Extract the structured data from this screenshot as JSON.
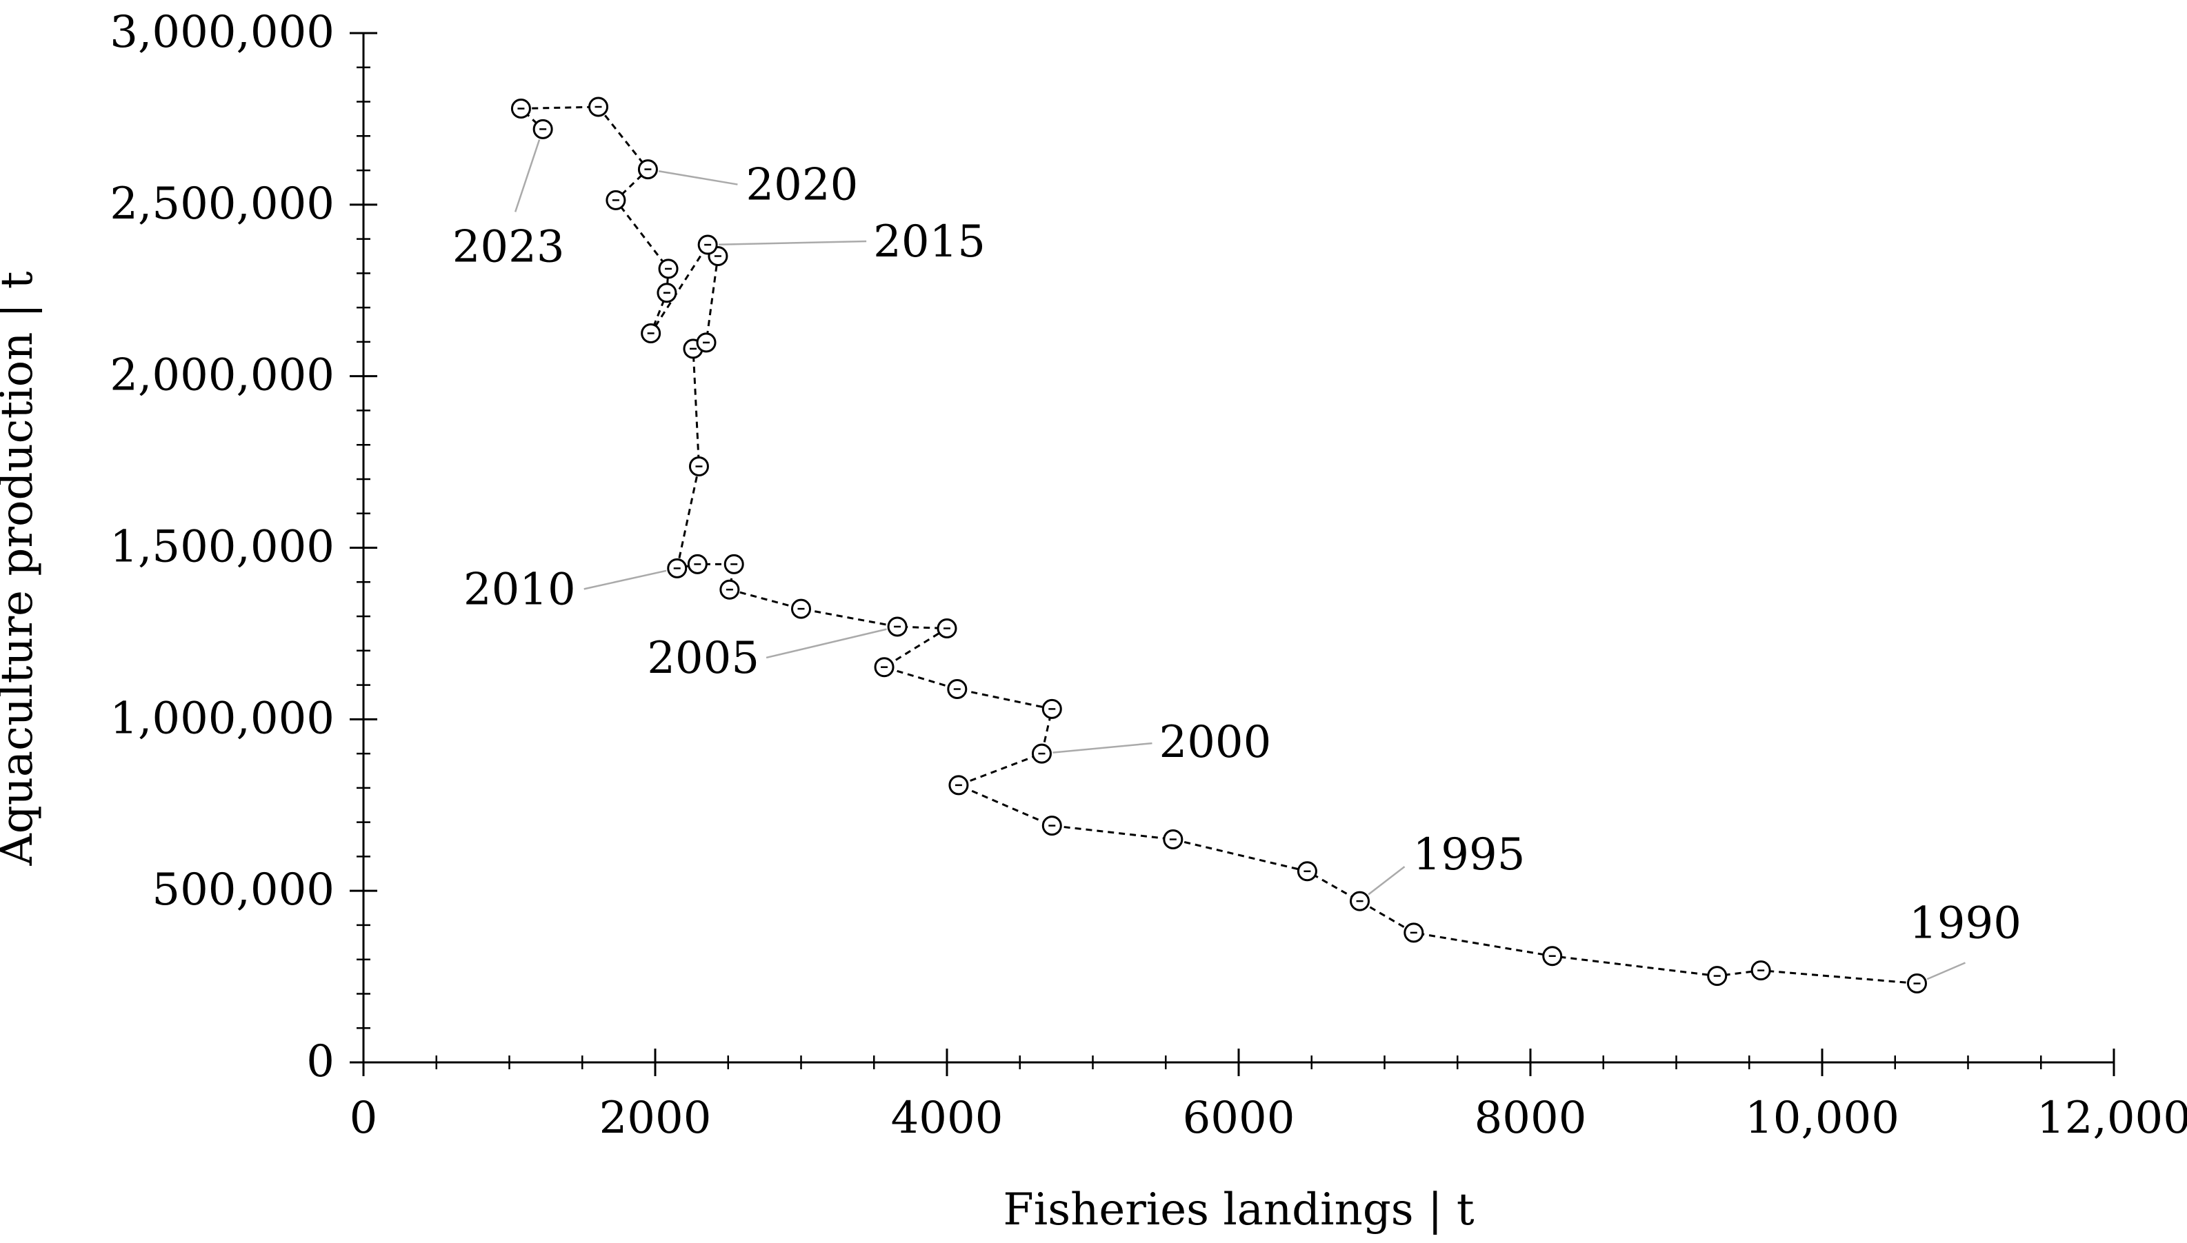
{
  "chart_data": {
    "type": "scatter",
    "xlabel": "Fisheries landings | t",
    "ylabel": "Aquaculture production | t",
    "xlim": [
      0,
      12000
    ],
    "ylim": [
      0,
      3000000
    ],
    "x_ticks": [
      0,
      2000,
      4000,
      6000,
      8000,
      10000,
      12000
    ],
    "x_tick_labels": [
      "0",
      "2000",
      "4000",
      "6000",
      "8000",
      "10,000",
      "12,000"
    ],
    "y_ticks": [
      0,
      500000,
      1000000,
      1500000,
      2000000,
      2500000,
      3000000
    ],
    "y_tick_labels": [
      "0",
      "500,000",
      "1,000,000",
      "1,500,000",
      "2,000,000",
      "2,500,000",
      "3,000,000"
    ],
    "grid": false,
    "points": [
      {
        "x": 10650,
        "y": 230000
      },
      {
        "x": 9580,
        "y": 268000
      },
      {
        "x": 9280,
        "y": 252000
      },
      {
        "x": 8150,
        "y": 310000
      },
      {
        "x": 7200,
        "y": 378000
      },
      {
        "x": 6830,
        "y": 470000
      },
      {
        "x": 6470,
        "y": 557000
      },
      {
        "x": 5550,
        "y": 650000
      },
      {
        "x": 4720,
        "y": 690000
      },
      {
        "x": 4080,
        "y": 808000
      },
      {
        "x": 4650,
        "y": 900000
      },
      {
        "x": 4720,
        "y": 1030000
      },
      {
        "x": 4070,
        "y": 1088000
      },
      {
        "x": 3570,
        "y": 1152000
      },
      {
        "x": 4000,
        "y": 1265000
      },
      {
        "x": 3660,
        "y": 1270000
      },
      {
        "x": 3000,
        "y": 1322000
      },
      {
        "x": 2510,
        "y": 1378000
      },
      {
        "x": 2540,
        "y": 1452000
      },
      {
        "x": 2290,
        "y": 1452000
      },
      {
        "x": 2150,
        "y": 1440000
      },
      {
        "x": 2300,
        "y": 1737000
      },
      {
        "x": 2260,
        "y": 2080000
      },
      {
        "x": 2350,
        "y": 2098000
      },
      {
        "x": 2430,
        "y": 2350000
      },
      {
        "x": 2360,
        "y": 2383000
      },
      {
        "x": 1970,
        "y": 2125000
      },
      {
        "x": 2080,
        "y": 2243000
      },
      {
        "x": 2090,
        "y": 2313000
      },
      {
        "x": 1730,
        "y": 2513000
      },
      {
        "x": 1950,
        "y": 2603000
      },
      {
        "x": 1610,
        "y": 2785000
      },
      {
        "x": 1080,
        "y": 2780000
      },
      {
        "x": 1230,
        "y": 2720000
      }
    ],
    "annotations": [
      {
        "label": "1990",
        "point_index": 0,
        "side": "above-right"
      },
      {
        "label": "1995",
        "point_index": 5,
        "side": "right"
      },
      {
        "label": "2000",
        "point_index": 10,
        "side": "right"
      },
      {
        "label": "2005",
        "point_index": 15,
        "side": "left"
      },
      {
        "label": "2010",
        "point_index": 20,
        "side": "left"
      },
      {
        "label": "2015",
        "point_index": 25,
        "side": "right"
      },
      {
        "label": "2020",
        "point_index": 30,
        "side": "right"
      },
      {
        "label": "2023",
        "point_index": 33,
        "side": "below-left"
      }
    ]
  }
}
